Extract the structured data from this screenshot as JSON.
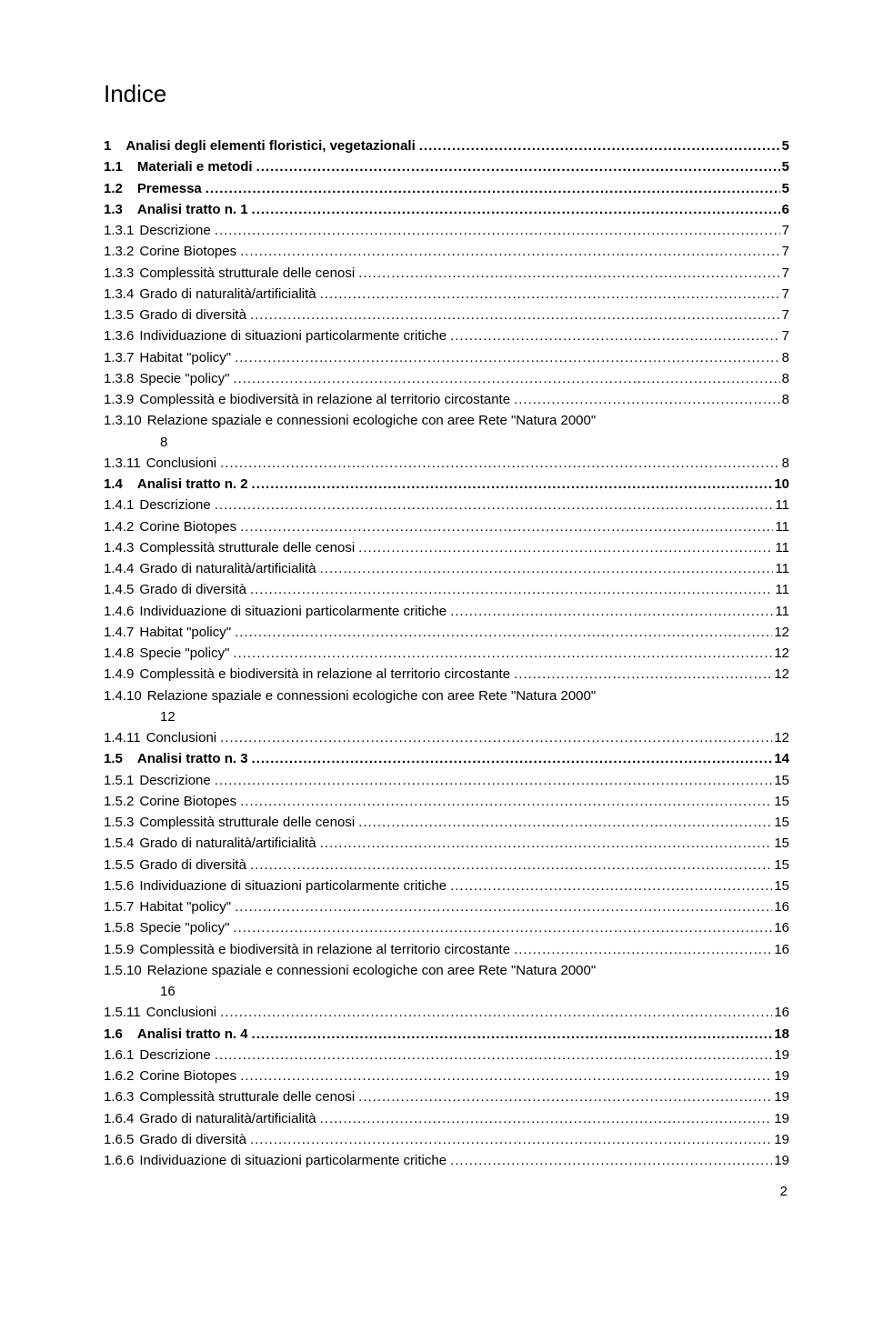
{
  "title": "Indice",
  "page_number": "2",
  "entries": [
    {
      "num": "1",
      "label": "Analisi degli elementi floristici, vegetazionali",
      "page": "5",
      "bold": true,
      "label_gap": "wide"
    },
    {
      "num": "1.1",
      "label": "Materiali e metodi",
      "page": "5",
      "bold": true,
      "label_gap": "wide"
    },
    {
      "num": "1.2",
      "label": "Premessa",
      "page": "5",
      "bold": true,
      "label_gap": "wide"
    },
    {
      "num": "1.3",
      "label": "Analisi tratto n. 1",
      "page": "6",
      "bold": true,
      "label_gap": "wide"
    },
    {
      "num": "1.3.1",
      "label": "Descrizione",
      "page": "7",
      "bold": false
    },
    {
      "num": "1.3.2",
      "label": "Corine Biotopes",
      "page": "7",
      "bold": false
    },
    {
      "num": "1.3.3",
      "label": "Complessità strutturale delle cenosi",
      "page": "7",
      "bold": false
    },
    {
      "num": "1.3.4",
      "label": "Grado di naturalità/artificialità",
      "page": "7",
      "bold": false
    },
    {
      "num": "1.3.5",
      "label": "Grado di diversità",
      "page": "7",
      "bold": false
    },
    {
      "num": "1.3.6",
      "label": "Individuazione di situazioni particolarmente critiche",
      "page": "7",
      "bold": false
    },
    {
      "num": "1.3.7",
      "label": "Habitat \"policy\"",
      "page": "8",
      "bold": false
    },
    {
      "num": "1.3.8",
      "label": "Specie \"policy\"",
      "page": "8",
      "bold": false
    },
    {
      "num": "1.3.9",
      "label": "Complessità e biodiversità in relazione al territorio circostante",
      "page": "8",
      "bold": false
    },
    {
      "num": "1.3.10",
      "label": "Relazione spaziale e connessioni ecologiche con aree Rete \"Natura 2000\"",
      "page": "",
      "bold": false,
      "extra_below": "8"
    },
    {
      "num": "1.3.11",
      "label": "Conclusioni",
      "page": "8",
      "bold": false
    },
    {
      "num": "1.4",
      "label": "Analisi tratto n. 2",
      "page": "10",
      "bold": true,
      "label_gap": "wide"
    },
    {
      "num": "1.4.1",
      "label": "Descrizione",
      "page": "11",
      "bold": false
    },
    {
      "num": "1.4.2",
      "label": "Corine Biotopes",
      "page": "11",
      "bold": false
    },
    {
      "num": "1.4.3",
      "label": "Complessità strutturale delle cenosi",
      "page": "11",
      "bold": false
    },
    {
      "num": "1.4.4",
      "label": "Grado di naturalità/artificialità",
      "page": "11",
      "bold": false
    },
    {
      "num": "1.4.5",
      "label": "Grado di diversità",
      "page": "11",
      "bold": false
    },
    {
      "num": "1.4.6",
      "label": "Individuazione di situazioni particolarmente critiche",
      "page": "11",
      "bold": false
    },
    {
      "num": "1.4.7",
      "label": "Habitat \"policy\"",
      "page": "12",
      "bold": false
    },
    {
      "num": "1.4.8",
      "label": "Specie \"policy\"",
      "page": "12",
      "bold": false
    },
    {
      "num": "1.4.9",
      "label": "Complessità e biodiversità in relazione al territorio circostante",
      "page": "12",
      "bold": false
    },
    {
      "num": "1.4.10",
      "label": "Relazione spaziale e connessioni ecologiche con aree Rete \"Natura 2000\"",
      "page": "",
      "bold": false,
      "extra_below": "12"
    },
    {
      "num": "1.4.11",
      "label": "Conclusioni",
      "page": "12",
      "bold": false
    },
    {
      "num": "1.5",
      "label": "Analisi tratto n. 3",
      "page": "14",
      "bold": true,
      "label_gap": "wide"
    },
    {
      "num": "1.5.1",
      "label": "Descrizione",
      "page": "15",
      "bold": false
    },
    {
      "num": "1.5.2",
      "label": "Corine Biotopes",
      "page": "15",
      "bold": false
    },
    {
      "num": "1.5.3",
      "label": "Complessità strutturale delle cenosi",
      "page": "15",
      "bold": false
    },
    {
      "num": "1.5.4",
      "label": "Grado di naturalità/artificialità",
      "page": "15",
      "bold": false
    },
    {
      "num": "1.5.5",
      "label": "Grado di diversità",
      "page": "15",
      "bold": false
    },
    {
      "num": "1.5.6",
      "label": "Individuazione di situazioni particolarmente critiche",
      "page": "15",
      "bold": false
    },
    {
      "num": "1.5.7",
      "label": "Habitat \"policy\"",
      "page": "16",
      "bold": false
    },
    {
      "num": "1.5.8",
      "label": "Specie \"policy\"",
      "page": "16",
      "bold": false
    },
    {
      "num": "1.5.9",
      "label": "Complessità e biodiversità in relazione al territorio circostante",
      "page": "16",
      "bold": false
    },
    {
      "num": "1.5.10",
      "label": "Relazione spaziale e connessioni ecologiche con aree Rete \"Natura 2000\"",
      "page": "",
      "bold": false,
      "extra_below": "16"
    },
    {
      "num": "1.5.11",
      "label": "Conclusioni",
      "page": "16",
      "bold": false
    },
    {
      "num": "1.6",
      "label": "Analisi tratto n. 4",
      "page": "18",
      "bold": true,
      "label_gap": "wide"
    },
    {
      "num": "1.6.1",
      "label": "Descrizione",
      "page": "19",
      "bold": false
    },
    {
      "num": "1.6.2",
      "label": "Corine Biotopes",
      "page": "19",
      "bold": false
    },
    {
      "num": "1.6.3",
      "label": "Complessità strutturale delle cenosi",
      "page": "19",
      "bold": false
    },
    {
      "num": "1.6.4",
      "label": "Grado di naturalità/artificialità",
      "page": "19",
      "bold": false
    },
    {
      "num": "1.6.5",
      "label": "Grado di diversità",
      "page": "19",
      "bold": false
    },
    {
      "num": "1.6.6",
      "label": "Individuazione di situazioni particolarmente critiche",
      "page": "19",
      "bold": false
    }
  ]
}
